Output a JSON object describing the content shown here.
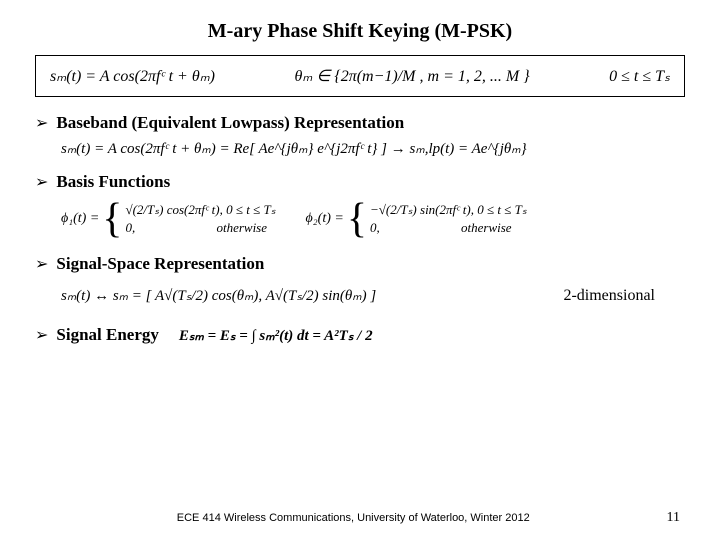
{
  "title": "M-ary Phase Shift Keying (M-PSK)",
  "top_eq": {
    "left": "sₘ(t) = A cos(2πfᶜ t + θₘ)",
    "mid": "θₘ ∈ {2π(m−1)/M , m = 1, 2, ... M }",
    "right": "0 ≤ t ≤ Tₛ"
  },
  "sections": {
    "baseband": "Baseband (Equivalent Lowpass) Representation",
    "basis": "Basis Functions",
    "signal_space": "Signal-Space Representation",
    "energy": "Signal Energy"
  },
  "baseband_eq": "sₘ(t) = A cos(2πfᶜ t + θₘ) = Re[ Ae^{jθₘ} e^{j2πfᶜ t} ] → sₘ,lp(t) = Ae^{jθₘ}",
  "basis_fns": {
    "phi1_label": "ϕ₁(t) =",
    "phi1_top": "√(2/Tₛ) cos(2πfᶜ t), 0 ≤ t ≤ Tₛ",
    "phi1_bot": "0,       otherwise",
    "phi2_label": "ϕ₂(t) =",
    "phi2_top": "−√(2/Tₛ) sin(2πfᶜ t), 0 ≤ t ≤ Tₛ",
    "phi2_bot": "0,       otherwise"
  },
  "signal_space_eq": "sₘ(t) ↔ sₘ = [ A√(Tₛ/2) cos(θₘ), A√(Tₛ/2) sin(θₘ) ]",
  "two_dim": "2-dimensional",
  "energy_eq": "Eₛₘ = Eₛ = ∫ sₘ²(t) dt = A²Tₛ / 2",
  "footer_text": "ECE 414 Wireless Communications, University of Waterloo, Winter 2012",
  "page_num": "11"
}
